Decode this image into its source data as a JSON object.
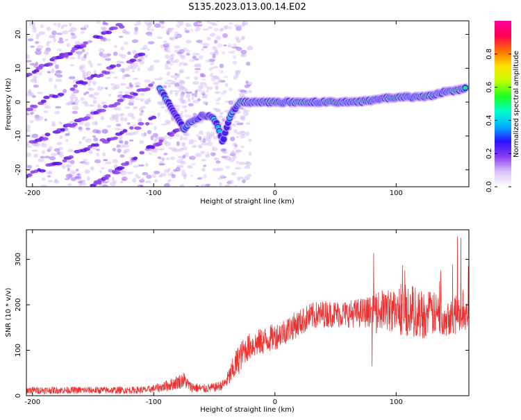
{
  "title": "S135.2023.013.00.14.E02",
  "colors": {
    "snr_line": "#ee3030",
    "axis": "#000000",
    "background": "#ffffff"
  },
  "chart_data": [
    {
      "type": "heatmap",
      "name": "spectrogram",
      "xlabel": "Height of straight line (km)",
      "ylabel": "Frequency (Hz)",
      "xlim": [
        -205,
        160
      ],
      "ylim": [
        -25,
        24
      ],
      "x_ticks": [
        -200,
        -100,
        0,
        100
      ],
      "y_ticks": [
        -20,
        -10,
        0,
        10,
        20
      ],
      "colorbar": {
        "label": "Normalized spectral amplitude",
        "range": [
          0,
          1
        ],
        "ticks": [
          0.0,
          0.2,
          0.4,
          0.6,
          0.8
        ],
        "tick_labels": [
          "0.0",
          "0.2",
          "0.4",
          "0.6",
          "0.8"
        ],
        "colormap": [
          "#ffffff",
          "#d8c2f5",
          "#8a3df0",
          "#2a10ff",
          "#00b0ff",
          "#00ffcc",
          "#20ff20",
          "#c0ff00",
          "#ffe000",
          "#ff7000",
          "#ff0050",
          "#ff00a0"
        ]
      },
      "main_trace": [
        [
          -95,
          4
        ],
        [
          -90,
          1
        ],
        [
          -85,
          -2
        ],
        [
          -80,
          -5
        ],
        [
          -75,
          -8
        ],
        [
          -70,
          -6
        ],
        [
          -60,
          -4
        ],
        [
          -55,
          -4
        ],
        [
          -50,
          -5
        ],
        [
          -46,
          -8
        ],
        [
          -43,
          -12
        ],
        [
          -40,
          -8
        ],
        [
          -37,
          -4
        ],
        [
          -33,
          -2
        ],
        [
          -28,
          0
        ],
        [
          -20,
          0
        ],
        [
          -10,
          0
        ],
        [
          0,
          0
        ],
        [
          10,
          0
        ],
        [
          20,
          0
        ],
        [
          30,
          0
        ],
        [
          40,
          0
        ],
        [
          50,
          0
        ],
        [
          60,
          0
        ],
        [
          70,
          0
        ],
        [
          80,
          0.5
        ],
        [
          90,
          1
        ],
        [
          100,
          1.5
        ],
        [
          110,
          1.5
        ],
        [
          120,
          1.5
        ],
        [
          130,
          2
        ],
        [
          140,
          3
        ],
        [
          150,
          3.5
        ],
        [
          158,
          4
        ]
      ],
      "diagonal_streaks": [
        {
          "x": [
            -205,
            -120
          ],
          "y": [
            8,
            24
          ]
        },
        {
          "x": [
            -205,
            -110
          ],
          "y": [
            -2,
            14
          ]
        },
        {
          "x": [
            -200,
            -100
          ],
          "y": [
            -12,
            5
          ]
        },
        {
          "x": [
            -205,
            -100
          ],
          "y": [
            -22,
            -5
          ]
        },
        {
          "x": [
            -150,
            -80
          ],
          "y": [
            -25,
            -8
          ]
        }
      ]
    },
    {
      "type": "line",
      "name": "snr",
      "xlabel": "Height of straight line (km)",
      "ylabel": "SNR (10 * v/v)",
      "xlim": [
        -205,
        160
      ],
      "ylim": [
        0,
        365
      ],
      "x_ticks": [
        -200,
        -100,
        0,
        100
      ],
      "y_ticks": [
        0,
        100,
        200,
        300
      ],
      "envelope": [
        [
          -205,
          12,
          8
        ],
        [
          -180,
          12,
          8
        ],
        [
          -150,
          12,
          8
        ],
        [
          -120,
          12,
          8
        ],
        [
          -105,
          13,
          8
        ],
        [
          -95,
          18,
          10
        ],
        [
          -85,
          25,
          14
        ],
        [
          -75,
          35,
          18
        ],
        [
          -70,
          20,
          12
        ],
        [
          -60,
          15,
          10
        ],
        [
          -50,
          18,
          10
        ],
        [
          -42,
          25,
          12
        ],
        [
          -38,
          40,
          20
        ],
        [
          -34,
          60,
          30
        ],
        [
          -30,
          80,
          35
        ],
        [
          -25,
          100,
          30
        ],
        [
          -20,
          110,
          30
        ],
        [
          -10,
          120,
          30
        ],
        [
          0,
          130,
          30
        ],
        [
          10,
          145,
          30
        ],
        [
          20,
          160,
          30
        ],
        [
          30,
          175,
          30
        ],
        [
          40,
          180,
          30
        ],
        [
          60,
          180,
          30
        ],
        [
          80,
          185,
          35
        ],
        [
          90,
          190,
          45
        ],
        [
          100,
          185,
          50
        ],
        [
          110,
          190,
          60
        ],
        [
          120,
          180,
          55
        ],
        [
          130,
          180,
          50
        ],
        [
          140,
          175,
          45
        ],
        [
          150,
          180,
          40
        ],
        [
          160,
          180,
          35
        ]
      ],
      "peak_max": 360
    }
  ]
}
